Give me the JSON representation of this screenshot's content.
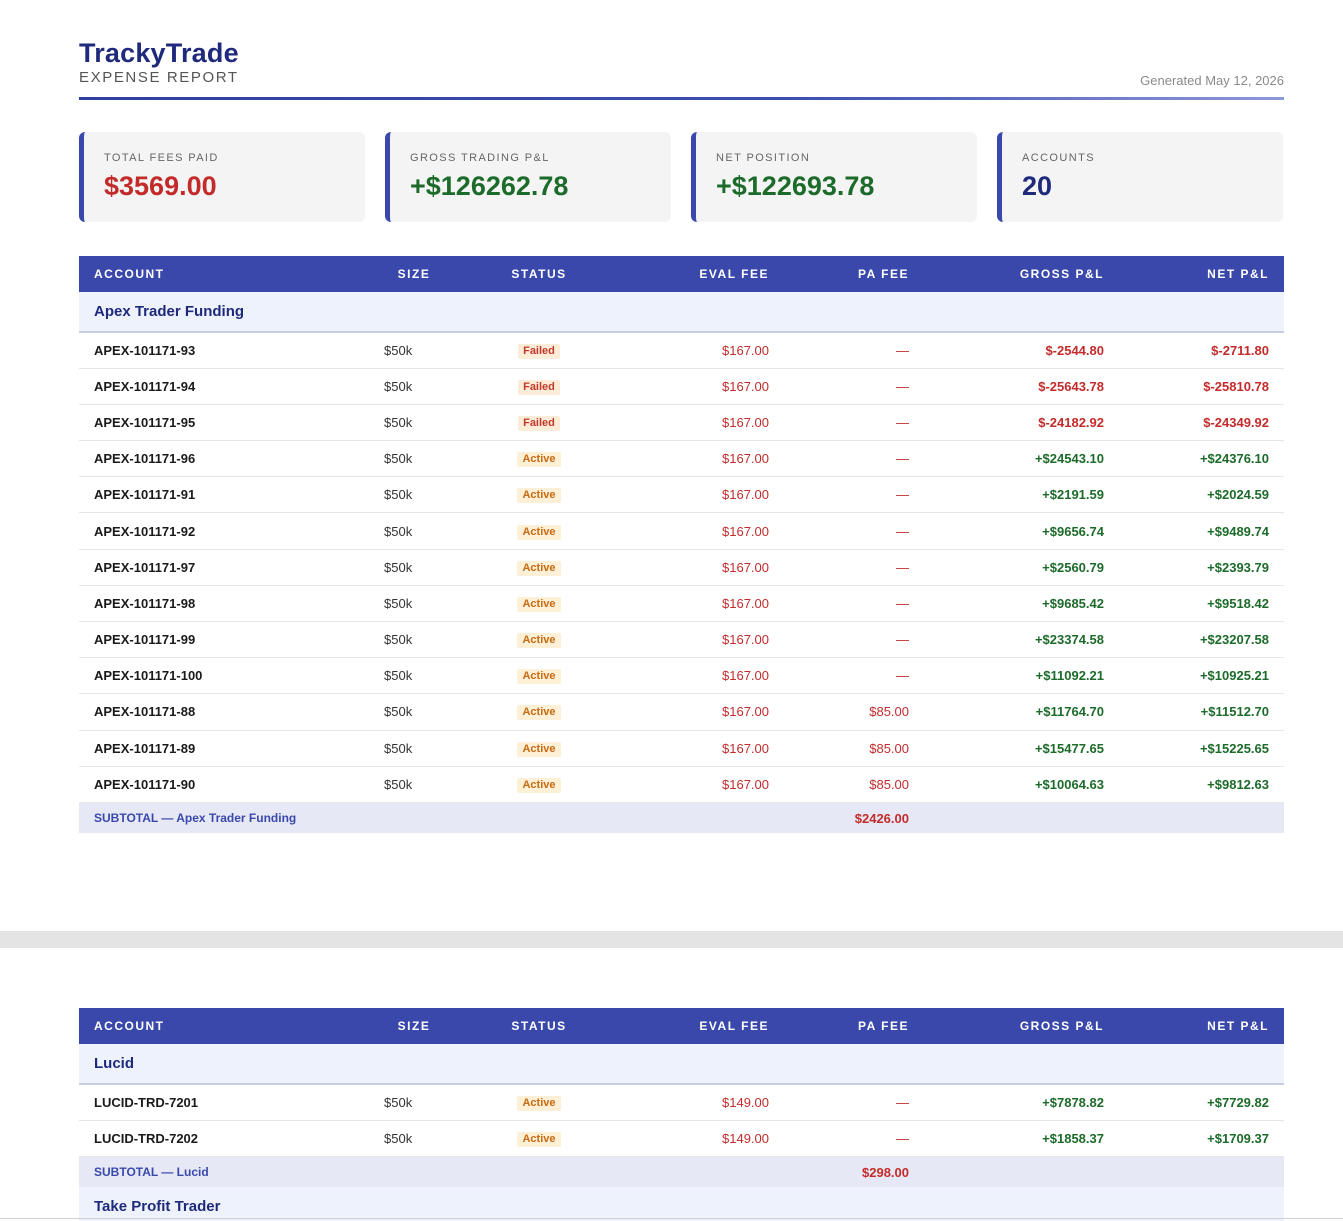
{
  "report": {
    "brand": "TrackyTrade",
    "subtitle": "EXPENSE REPORT",
    "generated": "Generated May 12, 2026"
  },
  "summary": {
    "total_fees": {
      "label": "TOTAL FEES PAID",
      "value": "$3569.00"
    },
    "gross_pnl": {
      "label": "GROSS TRADING P&L",
      "value": "+$126262.78"
    },
    "net_position": {
      "label": "NET POSITION",
      "value": "+$122693.78"
    },
    "accounts": {
      "label": "ACCOUNTS",
      "value": "20"
    }
  },
  "columns": [
    "ACCOUNT",
    "SIZE",
    "STATUS",
    "EVAL FEE",
    "PA FEE",
    "GROSS P&L",
    "NET P&L"
  ],
  "groups": [
    {
      "name": "Apex Trader Funding",
      "rows": [
        {
          "account": "APEX-101171-93",
          "size": "$50k",
          "status": "Failed",
          "eval_fee": "$167.00",
          "pa_fee": "—",
          "gross": "$-2544.80",
          "net": "$-2711.80"
        },
        {
          "account": "APEX-101171-94",
          "size": "$50k",
          "status": "Failed",
          "eval_fee": "$167.00",
          "pa_fee": "—",
          "gross": "$-25643.78",
          "net": "$-25810.78"
        },
        {
          "account": "APEX-101171-95",
          "size": "$50k",
          "status": "Failed",
          "eval_fee": "$167.00",
          "pa_fee": "—",
          "gross": "$-24182.92",
          "net": "$-24349.92"
        },
        {
          "account": "APEX-101171-96",
          "size": "$50k",
          "status": "Active",
          "eval_fee": "$167.00",
          "pa_fee": "—",
          "gross": "+$24543.10",
          "net": "+$24376.10"
        },
        {
          "account": "APEX-101171-91",
          "size": "$50k",
          "status": "Active",
          "eval_fee": "$167.00",
          "pa_fee": "—",
          "gross": "+$2191.59",
          "net": "+$2024.59"
        },
        {
          "account": "APEX-101171-92",
          "size": "$50k",
          "status": "Active",
          "eval_fee": "$167.00",
          "pa_fee": "—",
          "gross": "+$9656.74",
          "net": "+$9489.74"
        },
        {
          "account": "APEX-101171-97",
          "size": "$50k",
          "status": "Active",
          "eval_fee": "$167.00",
          "pa_fee": "—",
          "gross": "+$2560.79",
          "net": "+$2393.79"
        },
        {
          "account": "APEX-101171-98",
          "size": "$50k",
          "status": "Active",
          "eval_fee": "$167.00",
          "pa_fee": "—",
          "gross": "+$9685.42",
          "net": "+$9518.42"
        },
        {
          "account": "APEX-101171-99",
          "size": "$50k",
          "status": "Active",
          "eval_fee": "$167.00",
          "pa_fee": "—",
          "gross": "+$23374.58",
          "net": "+$23207.58"
        },
        {
          "account": "APEX-101171-100",
          "size": "$50k",
          "status": "Active",
          "eval_fee": "$167.00",
          "pa_fee": "—",
          "gross": "+$11092.21",
          "net": "+$10925.21"
        },
        {
          "account": "APEX-101171-88",
          "size": "$50k",
          "status": "Active",
          "eval_fee": "$167.00",
          "pa_fee": "$85.00",
          "gross": "+$11764.70",
          "net": "+$11512.70"
        },
        {
          "account": "APEX-101171-89",
          "size": "$50k",
          "status": "Active",
          "eval_fee": "$167.00",
          "pa_fee": "$85.00",
          "gross": "+$15477.65",
          "net": "+$15225.65"
        },
        {
          "account": "APEX-101171-90",
          "size": "$50k",
          "status": "Active",
          "eval_fee": "$167.00",
          "pa_fee": "$85.00",
          "gross": "+$10064.63",
          "net": "+$9812.63"
        }
      ],
      "subtotal_label": "SUBTOTAL — Apex Trader Funding",
      "subtotal_fee": "$2426.00"
    },
    {
      "name": "Lucid",
      "rows": [
        {
          "account": "LUCID-TRD-7201",
          "size": "$50k",
          "status": "Active",
          "eval_fee": "$149.00",
          "pa_fee": "—",
          "gross": "+$7878.82",
          "net": "+$7729.82"
        },
        {
          "account": "LUCID-TRD-7202",
          "size": "$50k",
          "status": "Active",
          "eval_fee": "$149.00",
          "pa_fee": "—",
          "gross": "+$1858.37",
          "net": "+$1709.37"
        }
      ],
      "subtotal_label": "SUBTOTAL — Lucid",
      "subtotal_fee": "$298.00"
    },
    {
      "name": "Take Profit Trader",
      "rows": []
    }
  ]
}
